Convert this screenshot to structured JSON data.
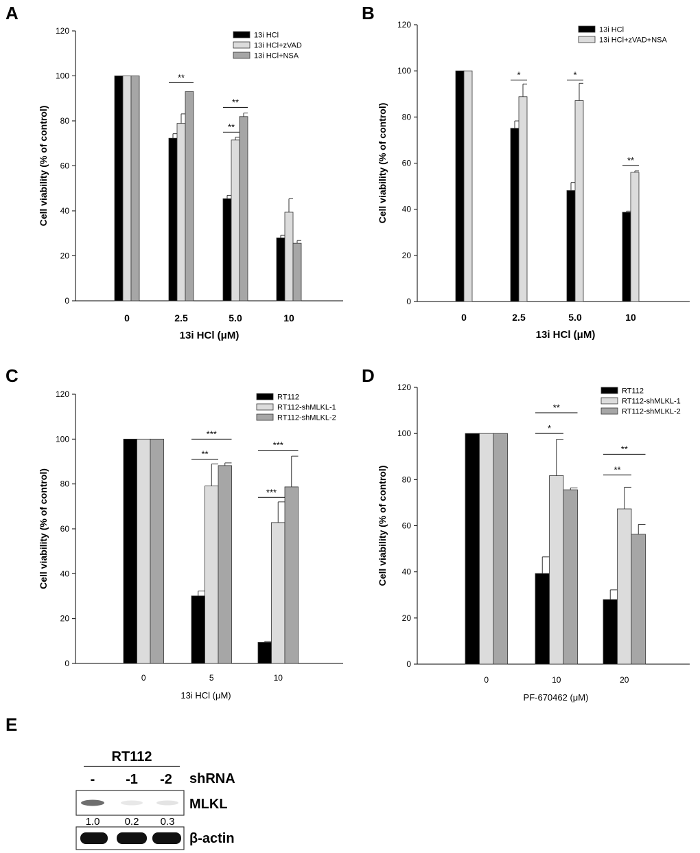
{
  "colors": {
    "black": "#000000",
    "light": "#dcdcdc",
    "gray": "#a6a6a6"
  },
  "chart_data": [
    {
      "panel": "A",
      "type": "bar",
      "categories": [
        "0",
        "2.5",
        "5.0",
        "10"
      ],
      "series": [
        {
          "name": "13i HCl",
          "color": "#000000",
          "values": [
            100,
            72.3,
            45.4,
            28.0
          ],
          "errors": [
            0,
            2.0,
            1.5,
            1.2
          ]
        },
        {
          "name": "13i HCl+zVAD",
          "color": "#dcdcdc",
          "values": [
            100,
            78.9,
            71.5,
            39.4
          ],
          "errors": [
            0,
            4.2,
            1.2,
            6.0
          ]
        },
        {
          "name": "13i HCl+NSA",
          "color": "#a6a6a6",
          "values": [
            100,
            93.0,
            81.9,
            25.6
          ],
          "errors": [
            0,
            0,
            1.6,
            1.2
          ]
        }
      ],
      "xlabel": "13i HCl (μM)",
      "ylabel": "Cell viability (% of control)",
      "ylim": [
        0,
        120
      ],
      "yticks": [
        0,
        20,
        40,
        60,
        80,
        100,
        120
      ],
      "significance": [
        {
          "cat": 1,
          "from": 0,
          "to": 2,
          "label": "**",
          "y": 97
        },
        {
          "cat": 2,
          "from": 0,
          "to": 1,
          "label": "**",
          "y": 75
        },
        {
          "cat": 2,
          "from": 0,
          "to": 2,
          "label": "**",
          "y": 86
        }
      ],
      "legend_position": "top-right"
    },
    {
      "panel": "B",
      "type": "bar",
      "categories": [
        "0",
        "2.5",
        "5.0",
        "10"
      ],
      "series": [
        {
          "name": "13i HCl",
          "color": "#000000",
          "values": [
            100,
            75.1,
            48.1,
            38.7
          ],
          "errors": [
            0,
            3.2,
            3.5,
            0.5
          ]
        },
        {
          "name": "13i HCl+zVAD+NSA",
          "color": "#dcdcdc",
          "values": [
            100,
            88.8,
            87.1,
            56.0
          ],
          "errors": [
            0,
            5.5,
            7.5,
            0.6
          ]
        }
      ],
      "xlabel": "13i HCl (μM)",
      "ylabel": "Cell viability (% of control)",
      "ylim": [
        0,
        120
      ],
      "yticks": [
        0,
        20,
        40,
        60,
        80,
        100,
        120
      ],
      "significance": [
        {
          "cat": 1,
          "from": 0,
          "to": 1,
          "label": "*",
          "y": 96
        },
        {
          "cat": 2,
          "from": 0,
          "to": 1,
          "label": "*",
          "y": 96
        },
        {
          "cat": 3,
          "from": 0,
          "to": 1,
          "label": "**",
          "y": 59
        }
      ],
      "legend_position": "top-right"
    },
    {
      "panel": "C",
      "type": "bar",
      "categories": [
        "0",
        "5",
        "10"
      ],
      "series": [
        {
          "name": "RT112",
          "color": "#000000",
          "values": [
            100,
            30.1,
            9.4
          ],
          "errors": [
            0,
            2.2,
            0.4
          ]
        },
        {
          "name": "RT112-shMLKL-1",
          "color": "#dcdcdc",
          "values": [
            100,
            79.1,
            62.8
          ],
          "errors": [
            0,
            9.8,
            9.2
          ]
        },
        {
          "name": "RT112-shMLKL-2",
          "color": "#a6a6a6",
          "values": [
            100,
            88.2,
            78.7
          ],
          "errors": [
            0,
            1.2,
            13.7
          ]
        }
      ],
      "xlabel": "13i HCl (μM)",
      "ylabel": "Cell viability (% of control)",
      "ylim": [
        0,
        120
      ],
      "yticks": [
        0,
        20,
        40,
        60,
        80,
        100,
        120
      ],
      "significance": [
        {
          "cat": 1,
          "from": 0,
          "to": 1,
          "label": "**",
          "y": 91
        },
        {
          "cat": 1,
          "from": 0,
          "to": 2,
          "label": "***",
          "y": 100
        },
        {
          "cat": 2,
          "from": 0,
          "to": 1,
          "label": "***",
          "y": 74
        },
        {
          "cat": 2,
          "from": 0,
          "to": 2,
          "label": "***",
          "y": 95
        }
      ],
      "legend_position": "top-right"
    },
    {
      "panel": "D",
      "type": "bar",
      "categories": [
        "0",
        "10",
        "20"
      ],
      "series": [
        {
          "name": "RT112",
          "color": "#000000",
          "values": [
            100,
            39.3,
            28.0
          ],
          "errors": [
            0,
            7.2,
            4.2
          ]
        },
        {
          "name": "RT112-shMLKL-1",
          "color": "#dcdcdc",
          "values": [
            100,
            81.7,
            67.3
          ],
          "errors": [
            0,
            15.8,
            9.4
          ]
        },
        {
          "name": "RT112-shMLKL-2",
          "color": "#a6a6a6",
          "values": [
            100,
            75.6,
            56.3
          ],
          "errors": [
            0,
            0.8,
            4.3
          ]
        }
      ],
      "xlabel": "PF-670462 (μM)",
      "ylabel": "Cell viability (% of control)",
      "ylim": [
        0,
        120
      ],
      "yticks": [
        0,
        20,
        40,
        60,
        80,
        100,
        120
      ],
      "significance": [
        {
          "cat": 1,
          "from": 0,
          "to": 1,
          "label": "*",
          "y": 100
        },
        {
          "cat": 1,
          "from": 0,
          "to": 2,
          "label": "**",
          "y": 109
        },
        {
          "cat": 2,
          "from": 0,
          "to": 1,
          "label": "**",
          "y": 82
        },
        {
          "cat": 2,
          "from": 0,
          "to": 2,
          "label": "**",
          "y": 91
        }
      ],
      "legend_position": "top-right"
    }
  ],
  "western_blot": {
    "panel": "E",
    "cell_line": "RT112",
    "lanes": [
      "-",
      "-1",
      "-2"
    ],
    "lane_label": "shRNA",
    "rows": [
      {
        "protein": "MLKL",
        "quantification": [
          "1.0",
          "0.2",
          "0.3"
        ]
      },
      {
        "protein": "β-actin",
        "quantification": []
      }
    ]
  }
}
